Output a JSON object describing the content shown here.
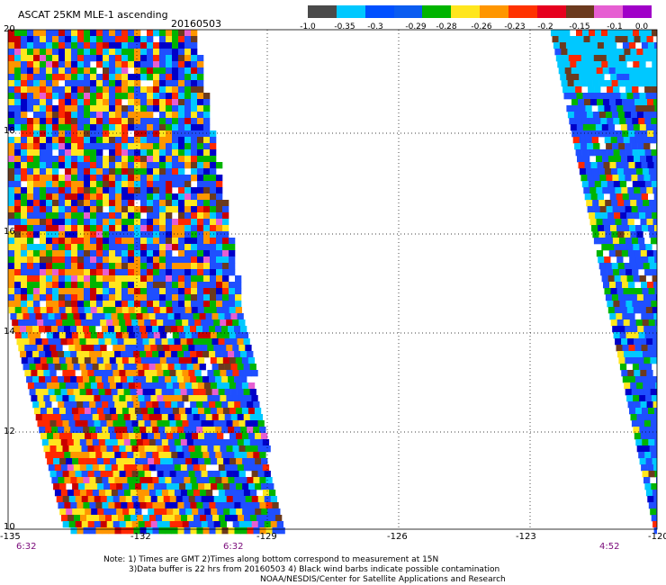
{
  "title": {
    "product": "ASCAT 25KM MLE-1 ascending",
    "date": "20160503"
  },
  "colorbar": {
    "labels": [
      "-1.0",
      "-0.35",
      "-0.3",
      "-0.29",
      "-0.28",
      "-0.26",
      "-0.23",
      "-0.2",
      "-0.15",
      "-0.1",
      "0.0"
    ],
    "colors": [
      "#4a4a4a",
      "#00c8ff",
      "#0050ff",
      "#0a5cf0",
      "#00b400",
      "#ffe61e",
      "#ff9600",
      "#ff3200",
      "#e6001e",
      "#6b3a1e",
      "#e65fd2",
      "#a000c8"
    ]
  },
  "axes": {
    "lat_labels": [
      "20",
      "18",
      "16",
      "14",
      "12",
      "10"
    ],
    "lon_labels": [
      "-135",
      "-132",
      "-129",
      "-126",
      "-123",
      "-120"
    ]
  },
  "time_labels": [
    "6:32",
    "6:32",
    "4:52"
  ],
  "notes": [
    "Note: 1) Times are GMT 2)Times along bottom correspond to measurement at 15N",
    "3)Data buffer is 22 hrs from 20160503 4) Black wind barbs indicate possible contamination",
    "NOAA/NESDIS/Center for Satellite Applications and Research"
  ]
}
